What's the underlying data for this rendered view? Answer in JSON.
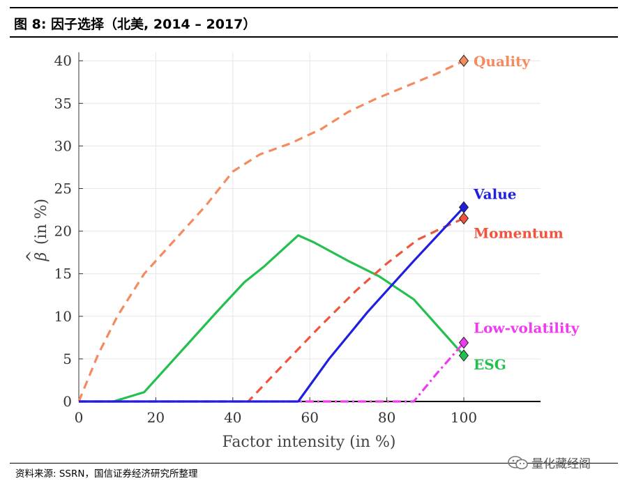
{
  "header": {
    "title": "图 8:  因子选择（北美, 2014 – 2017）"
  },
  "footer": {
    "source": "资料来源: SSRN，国信证券经济研究所整理",
    "watermark": "量化藏经阁"
  },
  "icons": {
    "watermark_icon": "wechat-icon"
  },
  "chart_data": {
    "type": "line",
    "title": "",
    "xlabel": "Factor intensity (in %)",
    "ylabel": "β̂ (in %)",
    "ylabel_hat": "^",
    "ylabel_beta": "β",
    "ylabel_rest": "(in %)",
    "xlim": [
      0,
      120
    ],
    "ylim": [
      0,
      41
    ],
    "x_ticks": [
      0,
      20,
      40,
      60,
      80,
      100
    ],
    "x_tick_labels": [
      "0",
      "20",
      "40",
      "60",
      "80",
      "100"
    ],
    "y_ticks": [
      0,
      5,
      10,
      15,
      20,
      25,
      30,
      35,
      40
    ],
    "y_tick_labels": [
      "0",
      "5",
      "10",
      "15",
      "20",
      "25",
      "30",
      "35",
      "40"
    ],
    "grid": true,
    "series": [
      {
        "name": "Quality",
        "color": "#f58a5f",
        "style": "dashed",
        "x": [
          0,
          5,
          10,
          17,
          25,
          33,
          40,
          47,
          55,
          63,
          70,
          77,
          85,
          93,
          100
        ],
        "y": [
          0,
          5.5,
          10,
          15,
          19,
          23,
          27,
          29,
          30.3,
          32,
          34,
          35.5,
          37,
          38.5,
          40
        ]
      },
      {
        "name": "Value",
        "color": "#1f1fe0",
        "style": "solid",
        "x": [
          0,
          57,
          65,
          75,
          87,
          100
        ],
        "y": [
          0,
          0,
          5,
          10.5,
          16.5,
          22.8
        ]
      },
      {
        "name": "Momentum",
        "color": "#f0543c",
        "style": "dashed",
        "x": [
          0,
          44,
          52,
          62,
          72,
          80,
          88,
          95,
          100
        ],
        "y": [
          0,
          0,
          3.8,
          8.5,
          13,
          16.2,
          19,
          20.5,
          21.5
        ]
      },
      {
        "name": "Low-volatility",
        "color": "#ef3bef",
        "style": "dashdot",
        "x": [
          0,
          87,
          93,
          100
        ],
        "y": [
          0,
          0,
          3.3,
          6.9
        ]
      },
      {
        "name": "ESG",
        "color": "#23c04f",
        "style": "solid",
        "x": [
          0,
          9,
          17,
          27,
          36,
          43,
          48,
          57,
          61,
          70,
          78,
          87,
          100
        ],
        "y": [
          0,
          0,
          1.1,
          6.1,
          10.6,
          14,
          15.8,
          19.5,
          18.7,
          16.5,
          14.7,
          12,
          5.4
        ]
      }
    ],
    "series_labels": [
      "Quality",
      "Value",
      "Momentum",
      "Low-volatility",
      "ESG"
    ]
  }
}
